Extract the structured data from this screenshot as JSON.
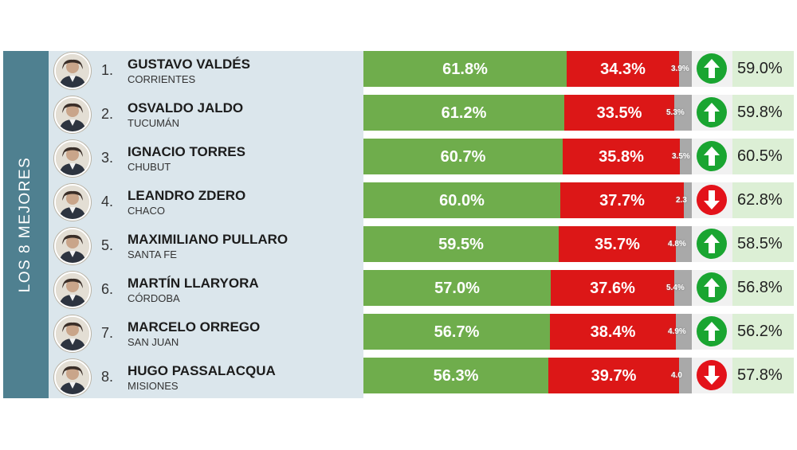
{
  "sidebar": {
    "label": "LOS 8 MEJORES"
  },
  "colors": {
    "approve": "#6fad4c",
    "disapprove": "#dc1717",
    "nsnc": "#a9a9a9",
    "up": "#1aa531",
    "down": "#e3121a"
  },
  "chart_data": {
    "type": "bar",
    "stacked": true,
    "categories": [
      "GUSTAVO VALDÉS",
      "OSVALDO JALDO",
      "IGNACIO TORRES",
      "LEANDRO ZDERO",
      "MAXIMILIANO PULLARO",
      "MARTÍN LLARYORA",
      "MARCELO ORREGO",
      "HUGO PASSALACQUA"
    ],
    "series": [
      {
        "values": [
          61.8,
          61.2,
          60.7,
          60.0,
          59.5,
          57.0,
          56.7,
          56.3
        ]
      },
      {
        "values": [
          34.3,
          33.5,
          35.8,
          37.7,
          35.7,
          37.6,
          38.4,
          39.7
        ]
      },
      {
        "values": [
          3.9,
          5.3,
          3.5,
          2.3,
          4.8,
          5.4,
          4.9,
          4.0
        ]
      }
    ],
    "previous": [
      59.0,
      59.8,
      60.5,
      62.8,
      58.5,
      56.8,
      56.2,
      57.8
    ],
    "trend": [
      "up",
      "up",
      "up",
      "down",
      "up",
      "up",
      "up",
      "down"
    ]
  },
  "rows": [
    {
      "rank": "1.",
      "name": "GUSTAVO VALDÉS",
      "province": "CORRIENTES",
      "approve": "61.8%",
      "disapprove": "34.3%",
      "nsnc": "3.9%",
      "trend_icon": "arrow-up-icon",
      "previous": "59.0%"
    },
    {
      "rank": "2.",
      "name": "OSVALDO JALDO",
      "province": "TUCUMÁN",
      "approve": "61.2%",
      "disapprove": "33.5%",
      "nsnc": "5.3%",
      "trend_icon": "arrow-up-icon",
      "previous": "59.8%"
    },
    {
      "rank": "3.",
      "name": "IGNACIO TORRES",
      "province": "CHUBUT",
      "approve": "60.7%",
      "disapprove": "35.8%",
      "nsnc": "3.5%",
      "trend_icon": "arrow-up-icon",
      "previous": "60.5%"
    },
    {
      "rank": "4.",
      "name": "LEANDRO ZDERO",
      "province": "CHACO",
      "approve": "60.0%",
      "disapprove": "37.7%",
      "nsnc": "2.3",
      "trend_icon": "arrow-down-icon",
      "previous": "62.8%"
    },
    {
      "rank": "5.",
      "name": "MAXIMILIANO PULLARO",
      "province": "SANTA FE",
      "approve": "59.5%",
      "disapprove": "35.7%",
      "nsnc": "4.8%",
      "trend_icon": "arrow-up-icon",
      "previous": "58.5%"
    },
    {
      "rank": "6.",
      "name": "MARTÍN LLARYORA",
      "province": "CÓRDOBA",
      "approve": "57.0%",
      "disapprove": "37.6%",
      "nsnc": "5.4%",
      "trend_icon": "arrow-up-icon",
      "previous": "56.8%"
    },
    {
      "rank": "7.",
      "name": "MARCELO ORREGO",
      "province": "SAN JUAN",
      "approve": "56.7%",
      "disapprove": "38.4%",
      "nsnc": "4.9%",
      "trend_icon": "arrow-up-icon",
      "previous": "56.2%"
    },
    {
      "rank": "8.",
      "name": "HUGO PASSALACQUA",
      "province": "MISIONES",
      "approve": "56.3%",
      "disapprove": "39.7%",
      "nsnc": "4.0",
      "trend_icon": "arrow-down-icon",
      "previous": "57.8%"
    }
  ]
}
